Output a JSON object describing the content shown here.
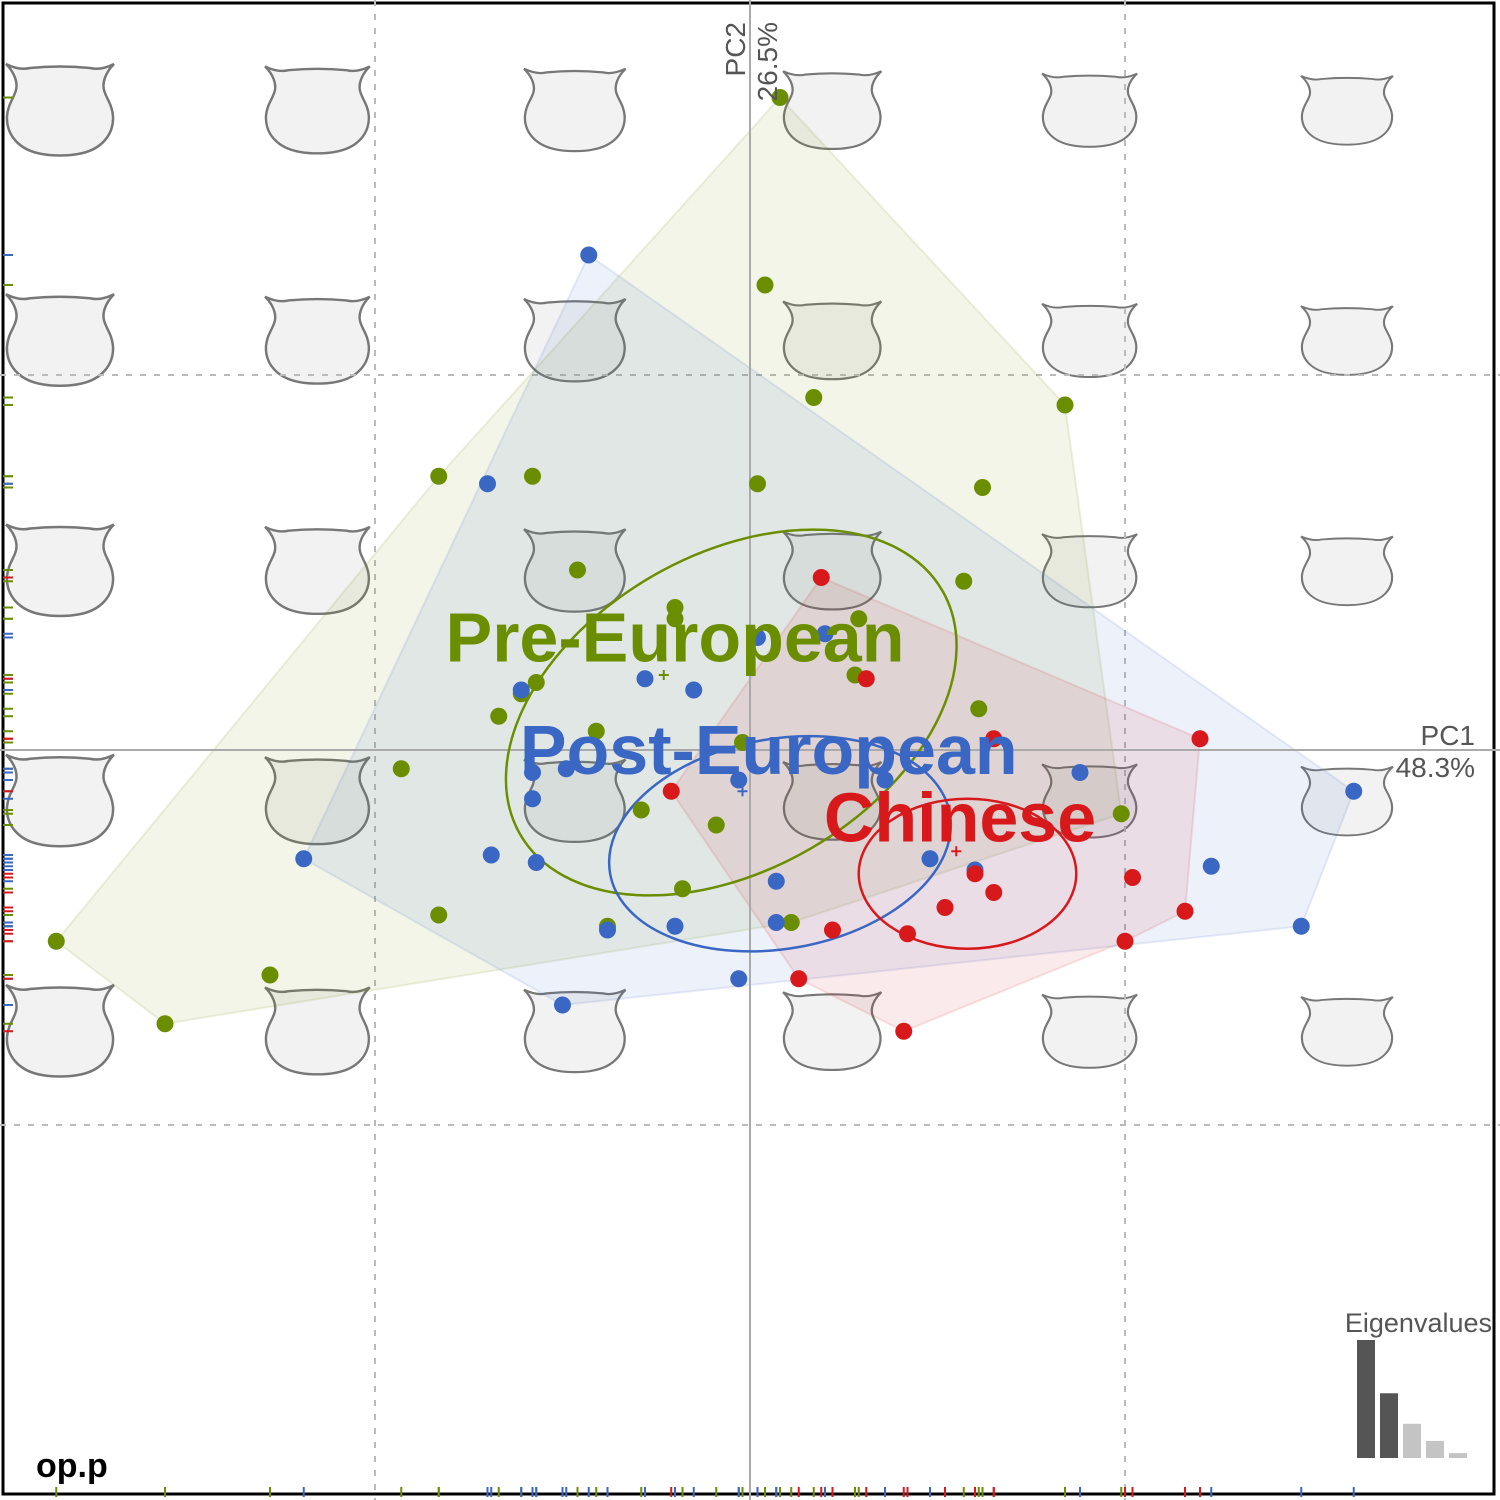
{
  "panel_label": "op.p",
  "axes": {
    "pc1_name": "PC1",
    "pc1_percent": "48.3%",
    "pc2_name": "PC2",
    "pc2_percent": "26.5%"
  },
  "eigenvalues_title": "Eigenvalues",
  "chart_data": {
    "type": "scatter",
    "xlabel": "PC1 48.3%",
    "ylabel": "PC2 26.5%",
    "xlim": [
      -2.0,
      2.0
    ],
    "ylim": [
      -2.0,
      2.0
    ],
    "grid": true,
    "grid_style": "dashed",
    "gridlines_x": [
      -1,
      0,
      1
    ],
    "gridlines_y": [
      -1,
      0,
      1
    ],
    "legend": "labels placed at group centroids",
    "eigenvalues": [
      0.483,
      0.265,
      0.14,
      0.07,
      0.02
    ],
    "background_shape_grid": {
      "columns": 6,
      "rows": 5
    },
    "series": [
      {
        "name": "Pre-European",
        "color": "#6b8e00",
        "label_position": [
          -0.2,
          0.3
        ],
        "centroid": [
          -0.23,
          0.2
        ],
        "ellipse": {
          "cx": -0.05,
          "cy": 0.1,
          "rx": 0.65,
          "ry": 0.42,
          "angle_deg": -30
        },
        "points": [
          [
            0.08,
            1.74
          ],
          [
            0.04,
            1.24
          ],
          [
            0.17,
            0.94
          ],
          [
            0.84,
            0.92
          ],
          [
            0.02,
            0.71
          ],
          [
            -0.83,
            0.73
          ],
          [
            -0.58,
            0.73
          ],
          [
            0.62,
            0.7
          ],
          [
            -0.46,
            0.48
          ],
          [
            0.57,
            0.45
          ],
          [
            -0.2,
            0.38
          ],
          [
            -0.2,
            0.35
          ],
          [
            0.29,
            0.35
          ],
          [
            0.28,
            0.2
          ],
          [
            -0.57,
            0.18
          ],
          [
            -0.61,
            0.15
          ],
          [
            -0.67,
            0.09
          ],
          [
            0.61,
            0.11
          ],
          [
            -0.41,
            0.05
          ],
          [
            -0.02,
            0.02
          ],
          [
            -0.93,
            -0.05
          ],
          [
            -0.29,
            -0.16
          ],
          [
            0.99,
            -0.17
          ],
          [
            -0.09,
            -0.2
          ],
          [
            -0.18,
            -0.37
          ],
          [
            -0.83,
            -0.44
          ],
          [
            -0.38,
            -0.47
          ],
          [
            0.11,
            -0.46
          ],
          [
            -1.85,
            -0.51
          ],
          [
            -1.28,
            -0.6
          ],
          [
            -1.56,
            -0.73
          ]
        ]
      },
      {
        "name": "Post-European",
        "color": "#3a66c4",
        "label_position": [
          0.05,
          0.0
        ],
        "centroid": [
          -0.02,
          -0.11
        ],
        "ellipse": {
          "cx": 0.08,
          "cy": -0.25,
          "rx": 0.46,
          "ry": 0.28,
          "angle_deg": -10
        },
        "points": [
          [
            -0.43,
            1.32
          ],
          [
            -0.7,
            0.71
          ],
          [
            0.2,
            0.31
          ],
          [
            0.02,
            0.3
          ],
          [
            -0.28,
            0.19
          ],
          [
            -0.15,
            0.16
          ],
          [
            -0.61,
            0.16
          ],
          [
            -0.49,
            -0.05
          ],
          [
            -0.58,
            -0.06
          ],
          [
            0.36,
            -0.08
          ],
          [
            0.88,
            -0.06
          ],
          [
            -0.03,
            -0.08
          ],
          [
            1.61,
            -0.11
          ],
          [
            -0.58,
            -0.13
          ],
          [
            0.48,
            -0.29
          ],
          [
            -0.69,
            -0.28
          ],
          [
            -0.57,
            -0.3
          ],
          [
            1.23,
            -0.31
          ],
          [
            0.6,
            -0.32
          ],
          [
            0.07,
            -0.35
          ],
          [
            -1.19,
            -0.29
          ],
          [
            0.07,
            -0.46
          ],
          [
            -0.2,
            -0.47
          ],
          [
            -0.38,
            -0.48
          ],
          [
            1.47,
            -0.47
          ],
          [
            -0.03,
            -0.61
          ],
          [
            -0.5,
            -0.68
          ]
        ]
      },
      {
        "name": "Chinese",
        "color": "#d7191c",
        "label_position": [
          0.56,
          -0.18
        ],
        "centroid": [
          0.55,
          -0.27
        ],
        "ellipse": {
          "cx": 0.58,
          "cy": -0.33,
          "rx": 0.29,
          "ry": 0.2,
          "angle_deg": 0
        },
        "points": [
          [
            0.19,
            0.46
          ],
          [
            0.31,
            0.19
          ],
          [
            0.65,
            0.03
          ],
          [
            1.2,
            0.03
          ],
          [
            -0.21,
            -0.11
          ],
          [
            0.6,
            -0.33
          ],
          [
            0.65,
            -0.38
          ],
          [
            0.52,
            -0.42
          ],
          [
            1.02,
            -0.34
          ],
          [
            1.16,
            -0.43
          ],
          [
            0.22,
            -0.48
          ],
          [
            0.42,
            -0.49
          ],
          [
            1.0,
            -0.51
          ],
          [
            0.13,
            -0.61
          ],
          [
            0.41,
            -0.75
          ]
        ]
      }
    ]
  }
}
